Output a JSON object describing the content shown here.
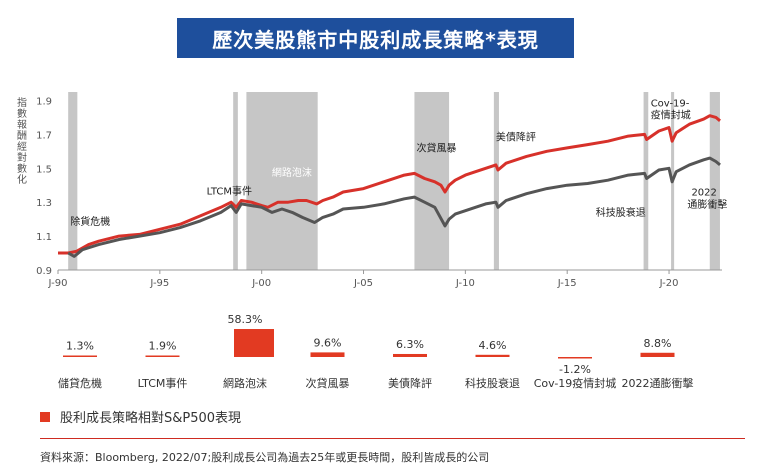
{
  "title": "歷次美股熊市中股利成長策略*表現",
  "legend_label": "股利成長策略相對S&P500表現",
  "source": "資料來源：Bloomberg, 2022/07;股利成長公司為過去25年或更長時間，股利皆成長的公司",
  "colors": {
    "red": "#d7312a",
    "gray": "#555555",
    "shade": "#c6c6c6",
    "title_bg": "#1e4f9c",
    "bar": "#e23a22"
  },
  "chart_data": [
    {
      "type": "line",
      "ylabel": "指數報酬經對數化",
      "ylim": [
        0.9,
        1.95
      ],
      "xlim": [
        1990.0,
        2022.6
      ],
      "yticks": [
        "0.9",
        "1.1",
        "1.3",
        "1.5",
        "1.7",
        "1.9"
      ],
      "xticks": [
        {
          "label": "J-90",
          "x": 1990
        },
        {
          "label": "J-95",
          "x": 1995
        },
        {
          "label": "J-00",
          "x": 2000
        },
        {
          "label": "J-05",
          "x": 2005
        },
        {
          "label": "J-10",
          "x": 2010
        },
        {
          "label": "J-15",
          "x": 2015
        },
        {
          "label": "J-20",
          "x": 2020
        }
      ],
      "shaded_periods": [
        [
          1990.5,
          1990.95
        ],
        [
          1998.6,
          1998.83
        ],
        [
          1999.25,
          2002.75
        ],
        [
          2007.5,
          2009.2
        ],
        [
          2011.4,
          2011.65
        ],
        [
          2018.75,
          2018.98
        ],
        [
          2020.1,
          2020.25
        ],
        [
          2022.0,
          2022.5
        ]
      ],
      "annotations": [
        {
          "text": "除貨危機",
          "x": 1990.6,
          "y": 1.165
        },
        {
          "text": "LTCM事件",
          "x": 1997.3,
          "y": 1.345
        },
        {
          "text": "網路泡沫",
          "x": 2000.5,
          "y": 1.455
        },
        {
          "text": "次貸風暴",
          "x": 2007.6,
          "y": 1.6
        },
        {
          "text": "美債降評",
          "x": 2011.5,
          "y": 1.665
        },
        {
          "text": "科技股衰退",
          "x": 2016.4,
          "y": 1.22
        },
        {
          "text": "Cov-19-",
          "x": 2019.1,
          "y": 1.865
        },
        {
          "text": "疫情封城",
          "x": 2019.1,
          "y": 1.795
        },
        {
          "text": "2022",
          "x": 2021.1,
          "y": 1.34
        },
        {
          "text": "通膨衝擊",
          "x": 2020.9,
          "y": 1.265
        }
      ],
      "series": [
        {
          "color": "red",
          "points": [
            [
              1990.0,
              1.0
            ],
            [
              1990.5,
              1.0
            ],
            [
              1990.9,
              1.01
            ],
            [
              1991.5,
              1.05
            ],
            [
              1992.0,
              1.07
            ],
            [
              1993.0,
              1.1
            ],
            [
              1994.0,
              1.11
            ],
            [
              1995.0,
              1.14
            ],
            [
              1996.0,
              1.17
            ],
            [
              1997.0,
              1.22
            ],
            [
              1998.0,
              1.27
            ],
            [
              1998.5,
              1.3
            ],
            [
              1998.75,
              1.27
            ],
            [
              1999.0,
              1.31
            ],
            [
              1999.5,
              1.3
            ],
            [
              2000.0,
              1.28
            ],
            [
              2000.3,
              1.27
            ],
            [
              2000.8,
              1.3
            ],
            [
              2001.3,
              1.3
            ],
            [
              2001.8,
              1.31
            ],
            [
              2002.2,
              1.31
            ],
            [
              2002.7,
              1.29
            ],
            [
              2003.0,
              1.31
            ],
            [
              2003.5,
              1.33
            ],
            [
              2004.0,
              1.36
            ],
            [
              2005.0,
              1.38
            ],
            [
              2006.0,
              1.42
            ],
            [
              2007.0,
              1.46
            ],
            [
              2007.5,
              1.47
            ],
            [
              2008.0,
              1.44
            ],
            [
              2008.5,
              1.42
            ],
            [
              2008.8,
              1.4
            ],
            [
              2009.0,
              1.36
            ],
            [
              2009.2,
              1.4
            ],
            [
              2009.5,
              1.43
            ],
            [
              2010.0,
              1.46
            ],
            [
              2010.5,
              1.48
            ],
            [
              2011.0,
              1.5
            ],
            [
              2011.5,
              1.52
            ],
            [
              2011.6,
              1.49
            ],
            [
              2012.0,
              1.53
            ],
            [
              2013.0,
              1.57
            ],
            [
              2014.0,
              1.6
            ],
            [
              2015.0,
              1.62
            ],
            [
              2016.0,
              1.64
            ],
            [
              2017.0,
              1.66
            ],
            [
              2018.0,
              1.69
            ],
            [
              2018.8,
              1.7
            ],
            [
              2018.9,
              1.67
            ],
            [
              2019.5,
              1.72
            ],
            [
              2020.0,
              1.74
            ],
            [
              2020.15,
              1.66
            ],
            [
              2020.35,
              1.71
            ],
            [
              2021.0,
              1.76
            ],
            [
              2021.7,
              1.79
            ],
            [
              2022.0,
              1.81
            ],
            [
              2022.3,
              1.8
            ],
            [
              2022.5,
              1.78
            ]
          ]
        },
        {
          "color": "gray",
          "points": [
            [
              1990.5,
              1.0
            ],
            [
              1990.8,
              0.98
            ],
            [
              1991.2,
              1.02
            ],
            [
              1992.0,
              1.05
            ],
            [
              1993.0,
              1.08
            ],
            [
              1994.0,
              1.1
            ],
            [
              1995.0,
              1.12
            ],
            [
              1996.0,
              1.15
            ],
            [
              1997.0,
              1.19
            ],
            [
              1998.0,
              1.24
            ],
            [
              1998.5,
              1.28
            ],
            [
              1998.75,
              1.24
            ],
            [
              1999.0,
              1.29
            ],
            [
              1999.5,
              1.28
            ],
            [
              2000.0,
              1.27
            ],
            [
              2000.5,
              1.24
            ],
            [
              2001.0,
              1.26
            ],
            [
              2001.5,
              1.24
            ],
            [
              2002.0,
              1.21
            ],
            [
              2002.6,
              1.18
            ],
            [
              2003.0,
              1.21
            ],
            [
              2003.5,
              1.23
            ],
            [
              2004.0,
              1.26
            ],
            [
              2005.0,
              1.27
            ],
            [
              2006.0,
              1.29
            ],
            [
              2007.0,
              1.32
            ],
            [
              2007.5,
              1.33
            ],
            [
              2008.0,
              1.3
            ],
            [
              2008.5,
              1.27
            ],
            [
              2009.0,
              1.16
            ],
            [
              2009.2,
              1.2
            ],
            [
              2009.5,
              1.23
            ],
            [
              2010.0,
              1.25
            ],
            [
              2010.5,
              1.27
            ],
            [
              2011.0,
              1.29
            ],
            [
              2011.5,
              1.3
            ],
            [
              2011.6,
              1.27
            ],
            [
              2012.0,
              1.31
            ],
            [
              2013.0,
              1.35
            ],
            [
              2014.0,
              1.38
            ],
            [
              2015.0,
              1.4
            ],
            [
              2016.0,
              1.41
            ],
            [
              2017.0,
              1.43
            ],
            [
              2018.0,
              1.46
            ],
            [
              2018.8,
              1.47
            ],
            [
              2018.9,
              1.44
            ],
            [
              2019.5,
              1.49
            ],
            [
              2020.0,
              1.5
            ],
            [
              2020.15,
              1.42
            ],
            [
              2020.35,
              1.48
            ],
            [
              2021.0,
              1.52
            ],
            [
              2021.7,
              1.55
            ],
            [
              2022.0,
              1.56
            ],
            [
              2022.3,
              1.54
            ],
            [
              2022.5,
              1.52
            ]
          ]
        }
      ]
    },
    {
      "type": "bar",
      "categories": [
        "儲貸危機",
        "LTCM事件",
        "網路泡沫",
        "次貸風暴",
        "美債降評",
        "科技股衰退",
        "Cov-19疫情封城",
        "2022通膨衝擊"
      ],
      "values": [
        1.3,
        1.9,
        58.3,
        9.6,
        6.3,
        4.6,
        -1.2,
        8.8
      ],
      "value_labels": [
        "1.3%",
        "1.9%",
        "58.3%",
        "9.6%",
        "6.3%",
        "4.6%",
        "-1.2%",
        "8.8%"
      ]
    }
  ]
}
